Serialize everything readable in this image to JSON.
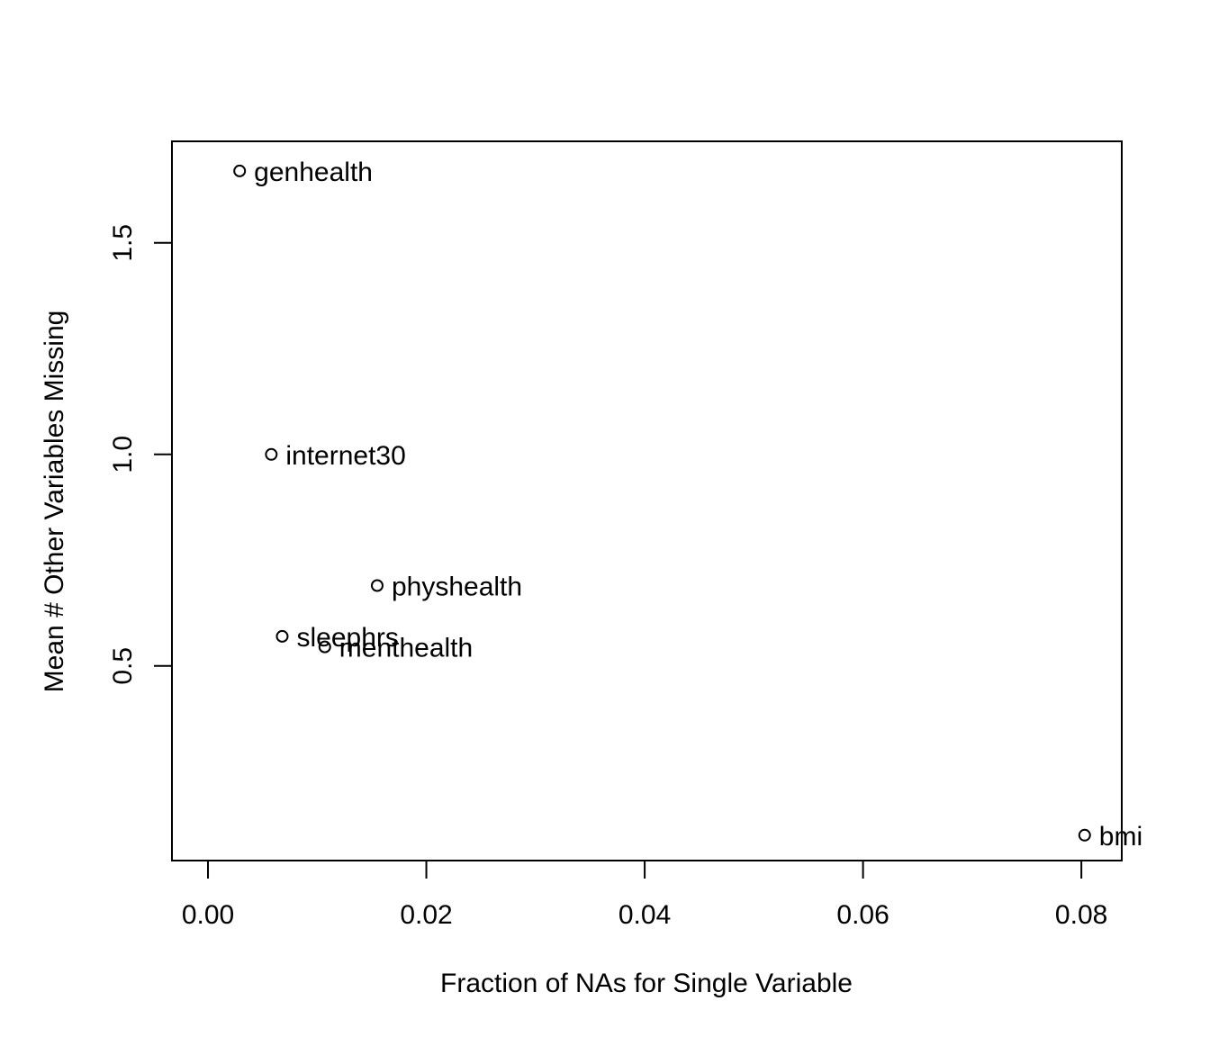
{
  "chart_data": {
    "type": "scatter",
    "title": "",
    "xlabel": "Fraction of NAs for Single Variable",
    "ylabel": "Mean # Other Variables Missing",
    "xlim": [
      -0.0033,
      0.0837
    ],
    "ylim": [
      0.04,
      1.74
    ],
    "xticks": [
      0.0,
      0.02,
      0.04,
      0.06,
      0.08
    ],
    "xtick_labels": [
      "0.00",
      "0.02",
      "0.04",
      "0.06",
      "0.08"
    ],
    "yticks": [
      0.5,
      1.0,
      1.5
    ],
    "ytick_labels": [
      "0.5",
      "1.0",
      "1.5"
    ],
    "grid": false,
    "marker": "open-circle",
    "points": [
      {
        "label": "genhealth",
        "x": 0.0029,
        "y": 1.67
      },
      {
        "label": "internet30",
        "x": 0.0058,
        "y": 1.0
      },
      {
        "label": "physhealth",
        "x": 0.0155,
        "y": 0.69
      },
      {
        "label": "sleephrs",
        "x": 0.0068,
        "y": 0.57
      },
      {
        "label": "menthealth",
        "x": 0.0107,
        "y": 0.545
      },
      {
        "label": "bmi",
        "x": 0.0803,
        "y": 0.1
      }
    ]
  }
}
